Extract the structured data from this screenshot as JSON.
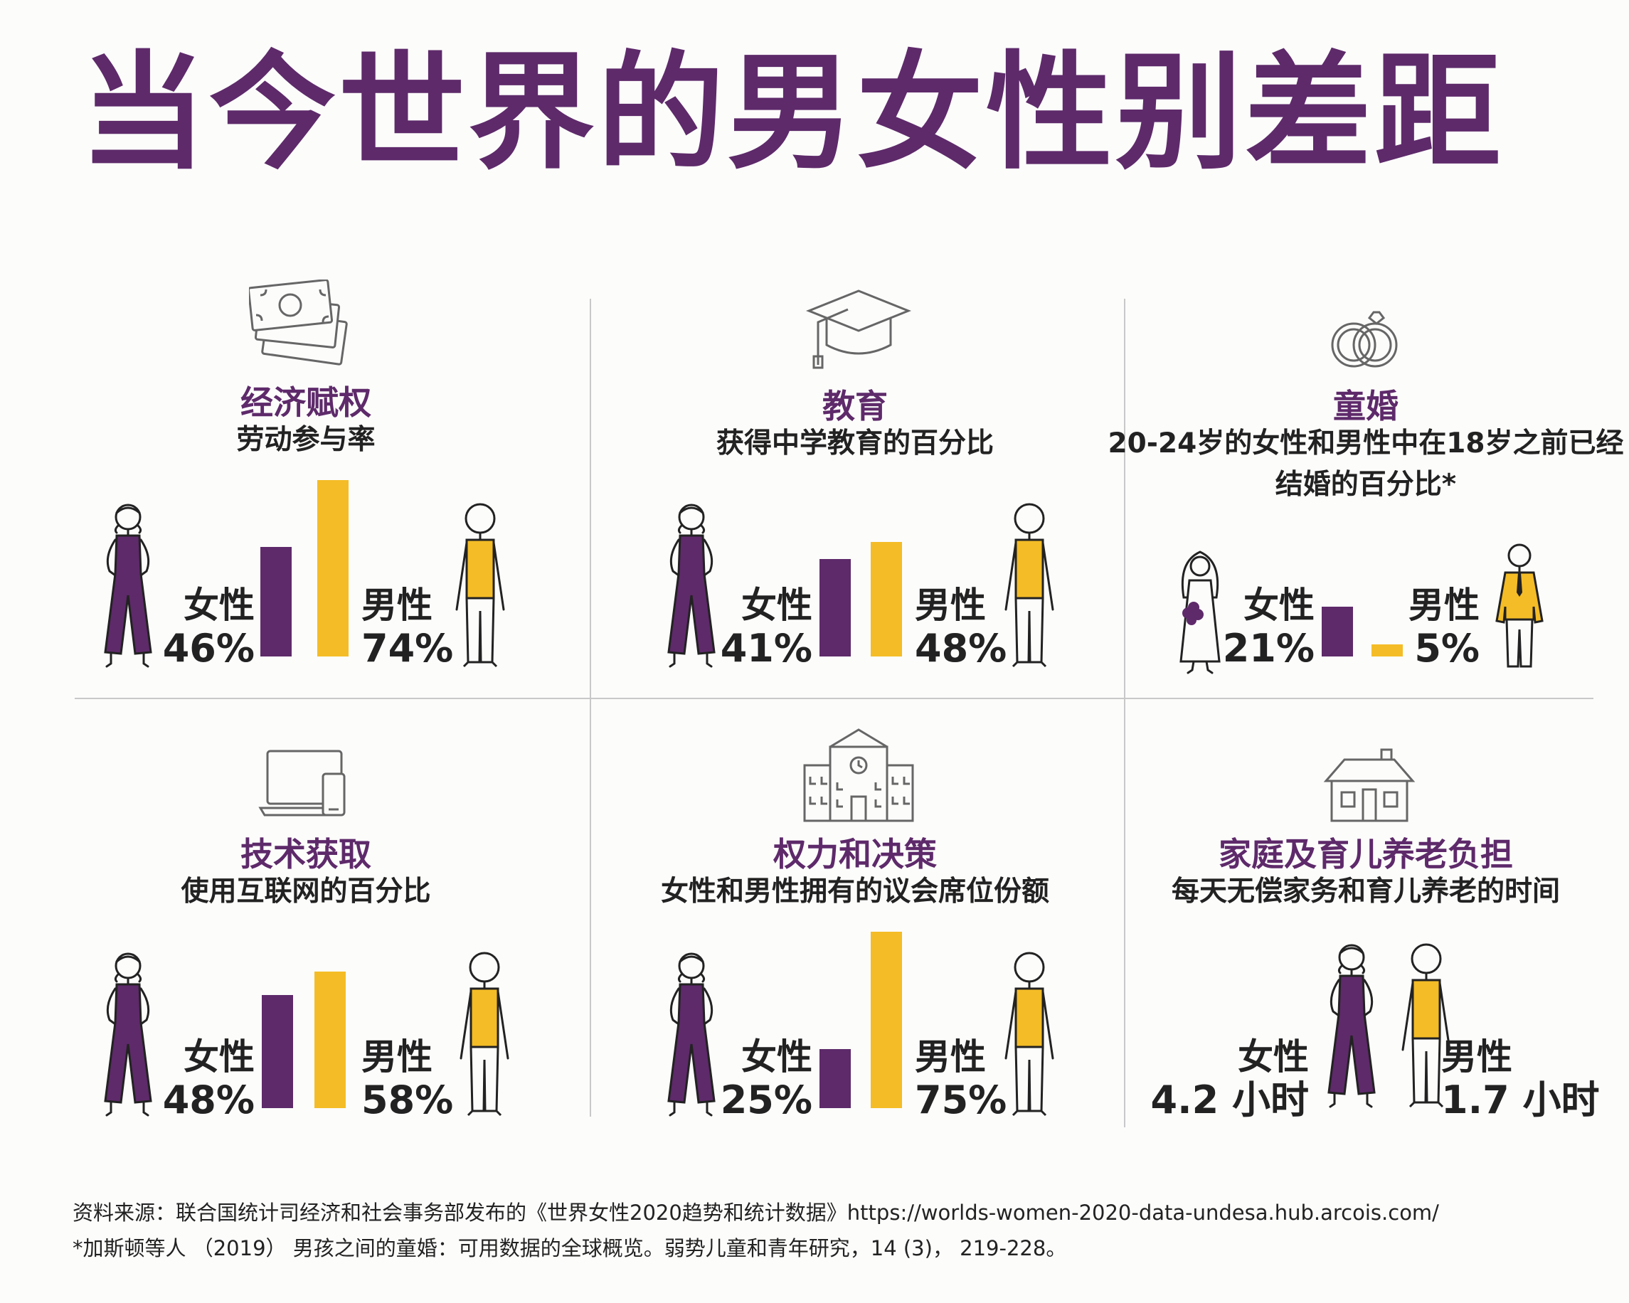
{
  "title": "当今世界的男女性别差距",
  "colors": {
    "female": "#5e2a6a",
    "male": "#f4bc26",
    "title": "#5e2a6a"
  },
  "panels": [
    {
      "icon": "money-icon",
      "title": "经济赋权",
      "subtitle": "劳动参与率",
      "female": {
        "label": "女性",
        "value_text": "46%",
        "value": 46
      },
      "male": {
        "label": "男性",
        "value_text": "74%",
        "value": 74
      }
    },
    {
      "icon": "graduation-cap-icon",
      "title": "教育",
      "subtitle": "获得中学教育的百分比",
      "female": {
        "label": "女性",
        "value_text": "41%",
        "value": 41
      },
      "male": {
        "label": "男性",
        "value_text": "48%",
        "value": 48
      }
    },
    {
      "icon": "rings-icon",
      "title": "童婚",
      "subtitle": "20-24岁的女性和男性中在18岁之前已经结婚的百分比*",
      "female": {
        "label": "女性",
        "value_text": "21%",
        "value": 21
      },
      "male": {
        "label": "男性",
        "value_text": "5%",
        "value": 5
      }
    },
    {
      "icon": "devices-icon",
      "title": "技术获取",
      "subtitle": "使用互联网的百分比",
      "female": {
        "label": "女性",
        "value_text": "48%",
        "value": 48
      },
      "male": {
        "label": "男性",
        "value_text": "58%",
        "value": 58
      }
    },
    {
      "icon": "parliament-building-icon",
      "title": "权力和决策",
      "subtitle": "女性和男性拥有的议会席位份额",
      "female": {
        "label": "女性",
        "value_text": "25%",
        "value": 25
      },
      "male": {
        "label": "男性",
        "value_text": "75%",
        "value": 75
      }
    },
    {
      "icon": "house-icon",
      "title": "家庭及育儿养老负担",
      "subtitle": "每天无偿家务和育儿养老的时间",
      "female": {
        "label": "女性",
        "value_text": "4.2 小时",
        "value": 4.2
      },
      "male": {
        "label": "男性",
        "value_text": "1.7 小时",
        "value": 1.7
      }
    }
  ],
  "chart_data": [
    {
      "type": "bar",
      "title": "经济赋权",
      "subtitle": "劳动参与率",
      "categories": [
        "女性",
        "男性"
      ],
      "values": [
        46,
        74
      ],
      "unit": "%"
    },
    {
      "type": "bar",
      "title": "教育",
      "subtitle": "获得中学教育的百分比",
      "categories": [
        "女性",
        "男性"
      ],
      "values": [
        41,
        48
      ],
      "unit": "%"
    },
    {
      "type": "bar",
      "title": "童婚",
      "subtitle": "20-24岁的女性和男性中在18岁之前已经结婚的百分比*",
      "categories": [
        "女性",
        "男性"
      ],
      "values": [
        21,
        5
      ],
      "unit": "%"
    },
    {
      "type": "bar",
      "title": "技术获取",
      "subtitle": "使用互联网的百分比",
      "categories": [
        "女性",
        "男性"
      ],
      "values": [
        48,
        58
      ],
      "unit": "%"
    },
    {
      "type": "bar",
      "title": "权力和决策",
      "subtitle": "女性和男性拥有的议会席位份额",
      "categories": [
        "女性",
        "男性"
      ],
      "values": [
        25,
        75
      ],
      "unit": "%"
    },
    {
      "type": "table",
      "title": "家庭及育儿养老负担",
      "subtitle": "每天无偿家务和育儿养老的时间",
      "categories": [
        "女性",
        "男性"
      ],
      "values": [
        4.2,
        1.7
      ],
      "unit": "小时"
    }
  ],
  "source": {
    "line1": "资料来源：联合国统计司经济和社会事务部发布的《世界女性2020趋势和统计数据》https://worlds-women-2020-data-undesa.hub.arcois.com/",
    "line2": "*加斯顿等人 （2019） 男孩之间的童婚：可用数据的全球概览。弱势儿童和青年研究，14 (3)， 219-228。"
  }
}
